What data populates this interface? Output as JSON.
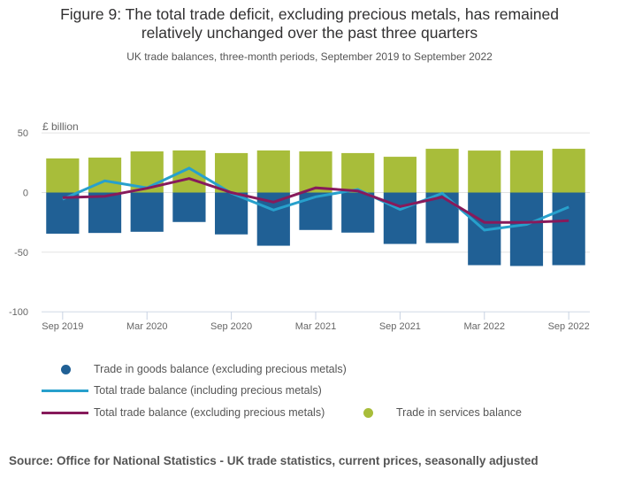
{
  "chart_data": {
    "type": "bar",
    "title": "Figure 9: The total trade deficit, excluding precious metals, has remained relatively unchanged over the past three quarters",
    "title_line1": "Figure 9: The total trade deficit, excluding precious metals, has remained",
    "title_line2": "relatively unchanged over the past three quarters",
    "subtitle": "UK trade balances, three-month periods, September 2019 to September 2022",
    "ylabel": "£ billion",
    "xlabel": "",
    "ylim": [
      -100,
      50
    ],
    "yticks": [
      50,
      0,
      -50,
      -100
    ],
    "ytick_labels": [
      "50",
      "0",
      "-50",
      "-100"
    ],
    "grid": true,
    "categories": [
      "Sep 2019",
      "Dec 2019",
      "Mar 2020",
      "Jun 2020",
      "Sep 2020",
      "Dec 2020",
      "Mar 2021",
      "Jun 2021",
      "Sep 2021",
      "Dec 2021",
      "Mar 2022",
      "Jun 2022",
      "Sep 2022"
    ],
    "xtick_labels": [
      "Sep 2019",
      "Mar 2020",
      "Sep 2020",
      "Mar 2021",
      "Sep 2021",
      "Mar 2022",
      "Sep 2022"
    ],
    "xtick_indices": [
      0,
      2,
      4,
      6,
      8,
      10,
      12
    ],
    "stacked": true,
    "series": [
      {
        "name": "Trade in goods balance (excluding precious metals)",
        "kind": "bar",
        "color": "#206095",
        "values": [
          -34.5,
          -33.9,
          -32.9,
          -24.7,
          -35.1,
          -44.6,
          -31.4,
          -33.6,
          -43.1,
          -42.4,
          -60.9,
          -61.6,
          -60.9
        ]
      },
      {
        "name": "Trade in services balance",
        "kind": "bar",
        "color": "#a8bd3a",
        "values": [
          28.6,
          29.3,
          34.5,
          35.3,
          33.1,
          35.3,
          34.5,
          33.1,
          30.0,
          36.7,
          35.2,
          35.2,
          36.7
        ]
      },
      {
        "name": "Total trade balance (including precious metals)",
        "kind": "line",
        "color": "#27a0cc",
        "values": [
          -5.6,
          9.8,
          3.9,
          20.4,
          -0.5,
          -14.7,
          -3.6,
          2.6,
          -14.2,
          -0.6,
          -31.5,
          -26.8,
          -12.2
        ]
      },
      {
        "name": "Total trade balance (excluding precious metals)",
        "kind": "line",
        "color": "#871a5b",
        "values": [
          -4.3,
          -3.1,
          3.6,
          11.7,
          0.0,
          -8.0,
          3.9,
          1.3,
          -11.7,
          -3.8,
          -25.0,
          -25.0,
          -23.6
        ]
      }
    ],
    "legend": [
      {
        "label": "Trade in goods balance (excluding precious metals)",
        "marker": "dot",
        "color": "#206095"
      },
      {
        "label": "Total trade balance (including precious metals)",
        "marker": "line",
        "color": "#27a0cc"
      },
      {
        "label": "Total trade balance (excluding precious metals)",
        "marker": "line",
        "color": "#871a5b"
      },
      {
        "label": "Trade in services balance",
        "marker": "dot",
        "color": "#a8bd3a"
      }
    ],
    "legend_position": "bottom",
    "source": "Source: Office for National Statistics - UK trade statistics, current prices, seasonally adjusted"
  }
}
